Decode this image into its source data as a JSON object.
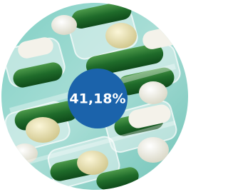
{
  "badge": {
    "label": "41,18%"
  }
}
